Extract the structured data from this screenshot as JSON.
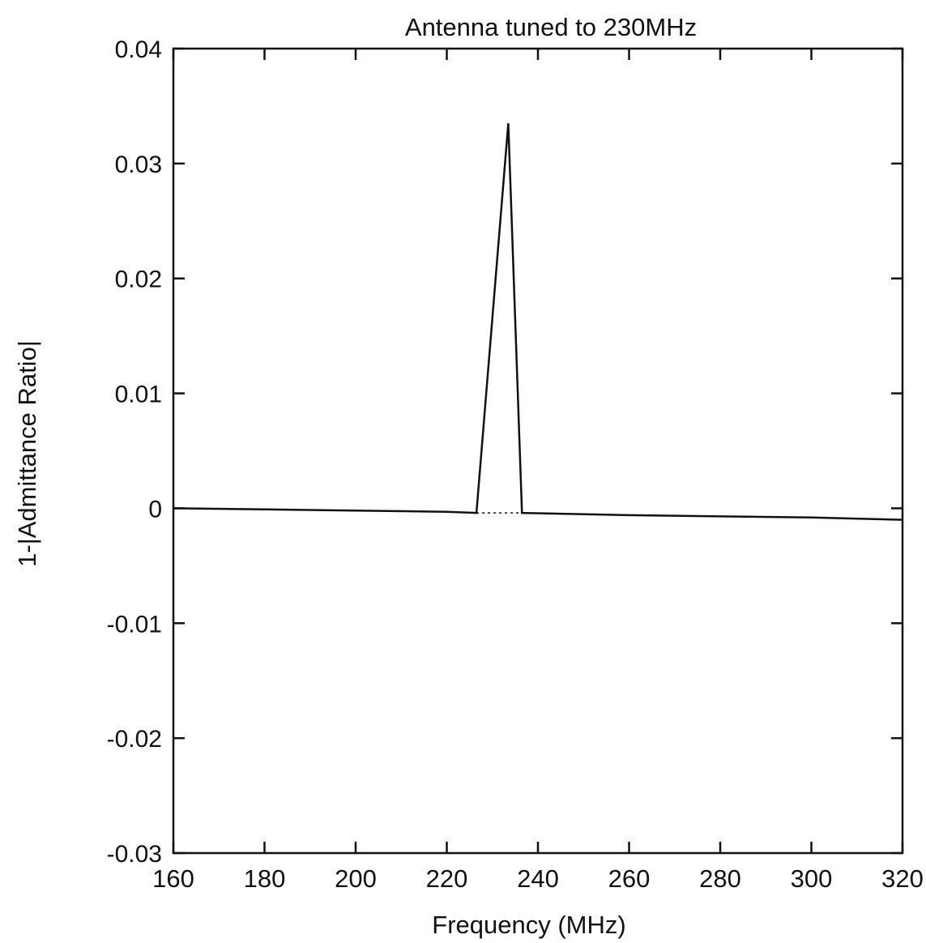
{
  "chart_data": {
    "type": "line",
    "title": "Antenna tuned to 230MHz",
    "xlabel": "Frequency  (MHz)",
    "ylabel": "1-|Admittance Ratio|",
    "xlim": [
      160,
      320
    ],
    "ylim": [
      -0.03,
      0.04
    ],
    "x_ticks": [
      "160",
      "180",
      "200",
      "220",
      "240",
      "260",
      "280",
      "300",
      "320"
    ],
    "y_ticks": [
      "0.04",
      "0.03",
      "0.02",
      "0.01",
      "0",
      "-0.01",
      "-0.02",
      "-0.03"
    ],
    "grid": false,
    "series": [
      {
        "style": "solid",
        "x": [
          160,
          180,
          200,
          220,
          226.5,
          233.5,
          236.5,
          260,
          280,
          300,
          320
        ],
        "y": [
          0,
          -0.0001,
          -0.0002,
          -0.0003,
          -0.0004,
          0.0335,
          -0.0004,
          -0.0006,
          -0.0007,
          -0.0008,
          -0.001
        ]
      },
      {
        "style": "dotted",
        "x": [
          226.5,
          236.5
        ],
        "y": [
          -0.0004,
          -0.0004
        ]
      }
    ]
  }
}
